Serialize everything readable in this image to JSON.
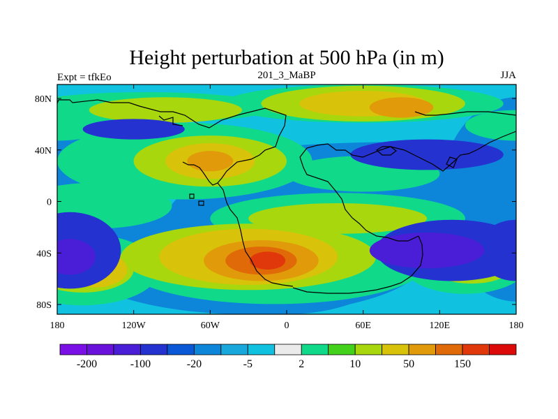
{
  "chart_data": {
    "type": "heatmap",
    "title": "Height perturbation at 500 hPa (in m)",
    "subtitle_left": "Expt = tfkEo",
    "subtitle_center": "201_3_MaBP",
    "subtitle_right": "JJA",
    "x_ticks": [
      "180",
      "120W",
      "60W",
      "0",
      "60E",
      "120E",
      "180"
    ],
    "y_ticks": [
      "80N",
      "40N",
      "0",
      "40S",
      "80S"
    ],
    "xlim": [
      -180,
      180
    ],
    "ylim": [
      -90,
      90
    ],
    "colorbar": {
      "labels": [
        "-200",
        "-100",
        "-20",
        "-5",
        "2",
        "10",
        "50",
        "150"
      ],
      "colors": [
        "#7a0fe6",
        "#6a12dc",
        "#4a1ed6",
        "#2432cf",
        "#0a58d6",
        "#0d86d9",
        "#18a8dc",
        "#10c2e0",
        "#ebebeb",
        "#11d98a",
        "#44d11b",
        "#a8d70e",
        "#d9c20a",
        "#e09a0a",
        "#e06a08",
        "#e0380a",
        "#dd0a0a"
      ]
    },
    "fields": [
      {
        "level": 5,
        "blobs": [
          [
            -180,
            0,
            60,
            80
          ],
          [
            0,
            -30,
            100,
            60
          ],
          [
            180,
            0,
            60,
            80
          ],
          [
            -30,
            -45,
            140,
            45
          ],
          [
            90,
            15,
            200,
            30
          ]
        ]
      },
      {
        "level": 9,
        "blobs": [
          [
            -110,
            72,
            100,
            12
          ],
          [
            60,
            75,
            110,
            15
          ],
          [
            -180,
            58,
            40,
            12
          ],
          [
            180,
            58,
            40,
            12
          ],
          [
            -80,
            30,
            100,
            30
          ],
          [
            -10,
            -50,
            120,
            32
          ],
          [
            -160,
            -55,
            60,
            28
          ],
          [
            140,
            -50,
            50,
            24
          ],
          [
            40,
            -15,
            100,
            20
          ],
          [
            60,
            20,
            60,
            14
          ],
          [
            -150,
            -5,
            60,
            18
          ]
        ]
      },
      {
        "level": 11,
        "blobs": [
          [
            -95,
            70,
            60,
            10
          ],
          [
            60,
            75,
            80,
            14
          ],
          [
            -60,
            30,
            60,
            20
          ],
          [
            -30,
            -45,
            100,
            26
          ],
          [
            -160,
            -55,
            40,
            18
          ],
          [
            40,
            -15,
            70,
            12
          ],
          [
            145,
            -50,
            35,
            16
          ]
        ]
      },
      {
        "level": 12,
        "blobs": [
          [
            60,
            75,
            50,
            10
          ],
          [
            -60,
            30,
            35,
            14
          ],
          [
            -30,
            -45,
            70,
            22
          ],
          [
            -150,
            -55,
            25,
            14
          ]
        ]
      },
      {
        "level": 13,
        "blobs": [
          [
            90,
            72,
            25,
            8
          ],
          [
            -60,
            30,
            18,
            8
          ],
          [
            -20,
            -48,
            45,
            16
          ]
        ]
      },
      {
        "level": 14,
        "blobs": [
          [
            -20,
            -48,
            28,
            11
          ]
        ]
      },
      {
        "level": 15,
        "blobs": [
          [
            -15,
            -48,
            14,
            7
          ]
        ]
      },
      {
        "level": 3,
        "blobs": [
          [
            -170,
            -40,
            40,
            30
          ],
          [
            130,
            -40,
            60,
            24
          ],
          [
            110,
            35,
            60,
            12
          ],
          [
            -120,
            55,
            40,
            8
          ],
          [
            180,
            -40,
            30,
            24
          ]
        ]
      },
      {
        "level": 2,
        "blobs": [
          [
            110,
            -40,
            45,
            14
          ],
          [
            -170,
            -45,
            20,
            14
          ]
        ]
      }
    ]
  }
}
